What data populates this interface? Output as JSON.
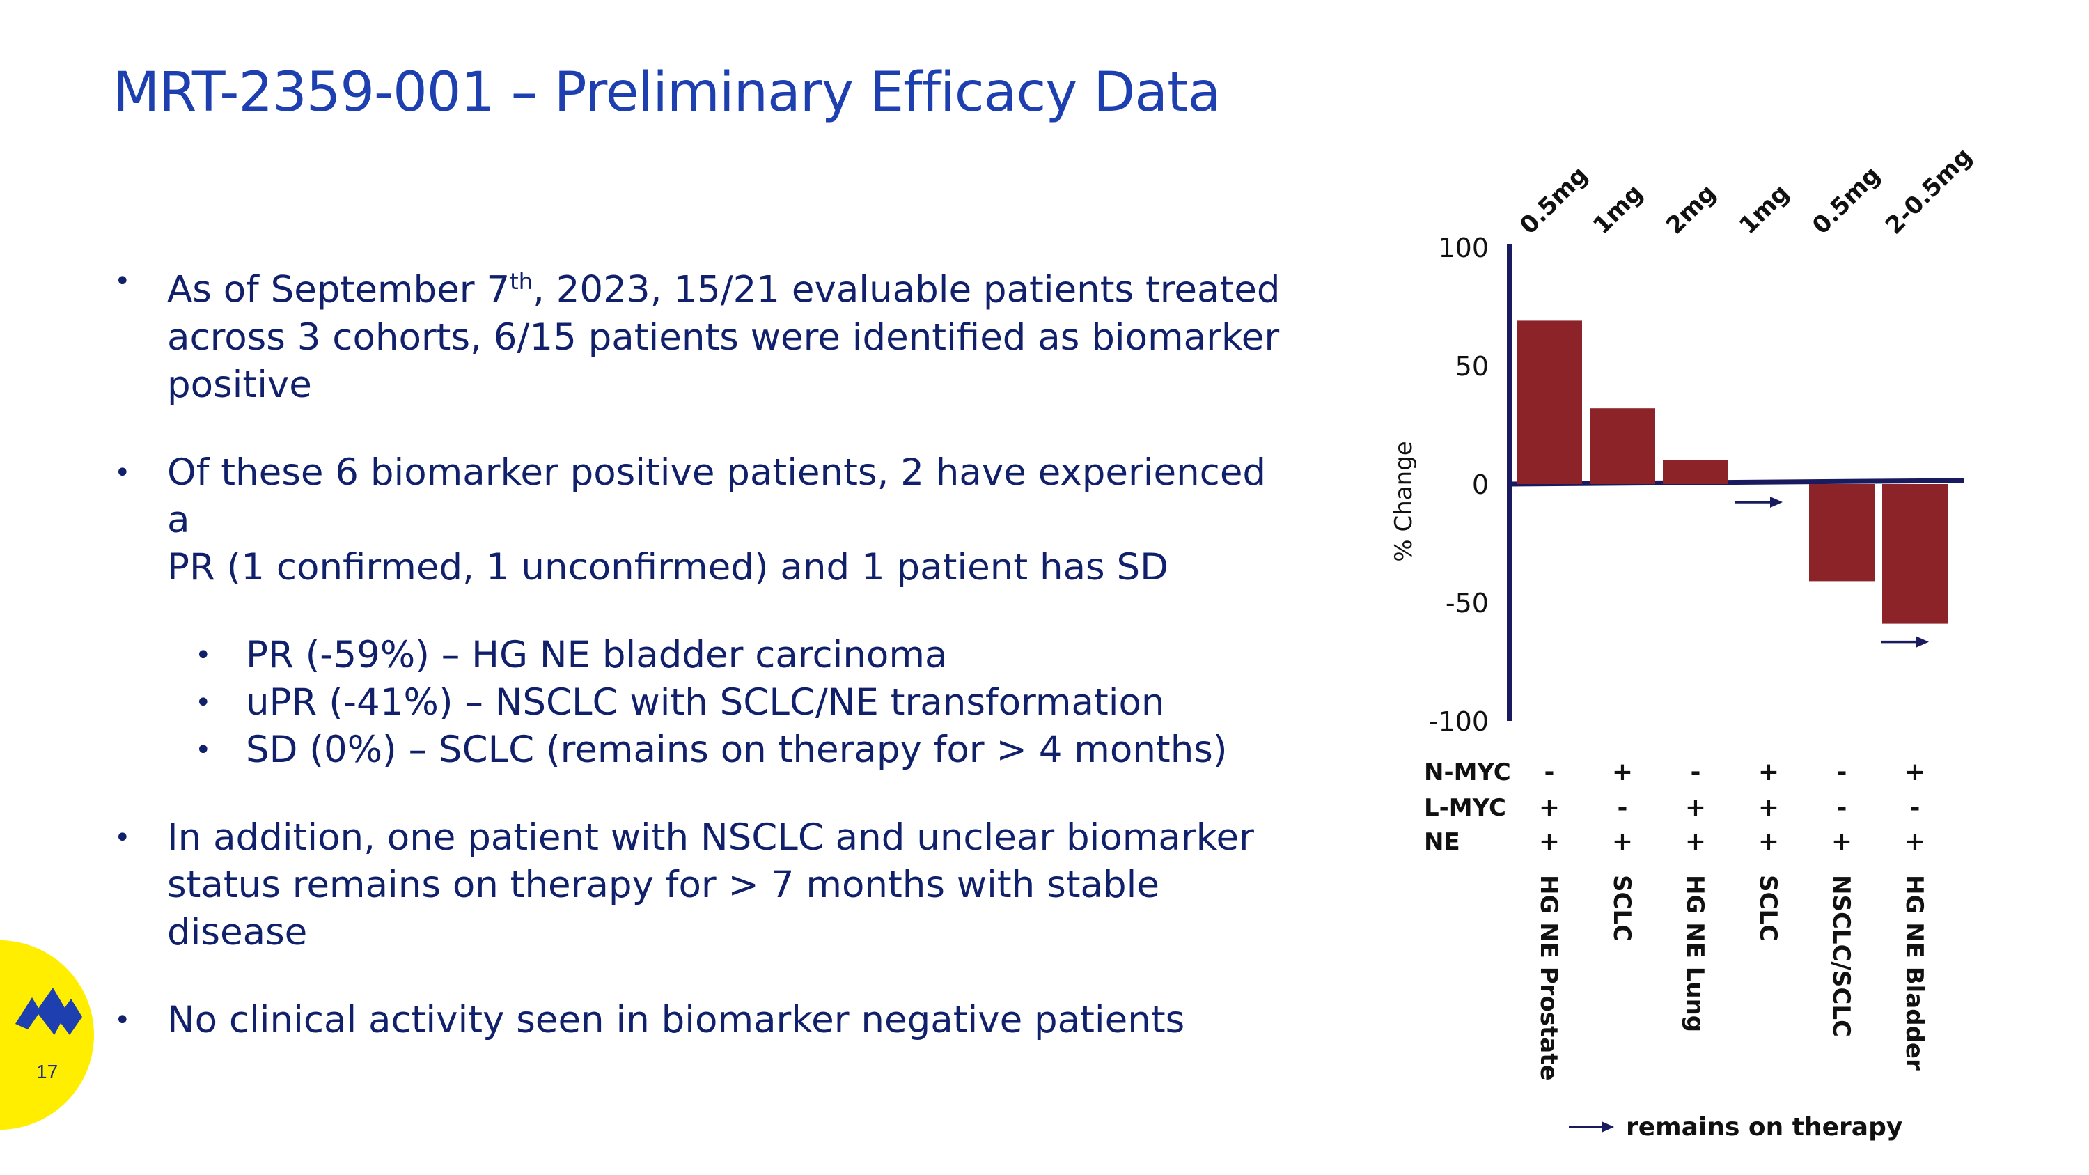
{
  "title": "MRT-2359-001 – Preliminary Efficacy Data",
  "bullets": {
    "b1_pre": "As of September 7",
    "b1_sup": "th",
    "b1_line1_post": ", 2023, 15/21 evaluable patients treated",
    "b1_line2": "across 3 cohorts, 6/15 patients were identified as biomarker",
    "b1_line3": "positive",
    "b2_line1": "Of these 6 biomarker positive patients, 2 have experienced a",
    "b2_line2": "PR (1 confirmed, 1 unconfirmed) and 1 patient has SD",
    "s1": "PR (-59%) – HG NE bladder carcinoma",
    "s2": "uPR (-41%) – NSCLC with SCLC/NE transformation",
    "s3": "SD (0%) – SCLC (remains on therapy for > 4 months)",
    "b3_line1": "In addition, one patient with NSCLC and unclear biomarker",
    "b3_line2": "status remains on therapy for > 7 months with stable disease",
    "b4": "No clinical activity seen in biomarker negative patients"
  },
  "page_number": "17",
  "colors": {
    "title": "#1d3fb0",
    "text": "#10206a",
    "bar": "#8b2328",
    "axis": "#1a1a5e",
    "seal": "#ffee00"
  },
  "chart_data": {
    "type": "bar",
    "ylabel": "% Change",
    "ylim": [
      -100,
      100
    ],
    "yticks": [
      100,
      50,
      0,
      -50,
      -100
    ],
    "categories": [
      "HG NE Prostate",
      "SCLC",
      "HG NE Lung",
      "SCLC",
      "NSCLC/SCLC",
      "HG NE Bladder"
    ],
    "doses": [
      "0.5mg",
      "1mg",
      "2mg",
      "1mg",
      "0.5mg",
      "2-0.5mg"
    ],
    "values": [
      69,
      32,
      10,
      0,
      -41,
      -59
    ],
    "remains_on_therapy": [
      false,
      false,
      false,
      true,
      false,
      true
    ],
    "biomarker_rows": [
      {
        "label": "N-MYC",
        "values": [
          "-",
          "+",
          "-",
          "+",
          "-",
          "+"
        ]
      },
      {
        "label": "L-MYC",
        "values": [
          "+",
          "-",
          "+",
          "+",
          "-",
          "-"
        ]
      },
      {
        "label": "NE",
        "values": [
          "+",
          "+",
          "+",
          "+",
          "+",
          "+"
        ]
      }
    ],
    "legend": "remains on therapy"
  }
}
